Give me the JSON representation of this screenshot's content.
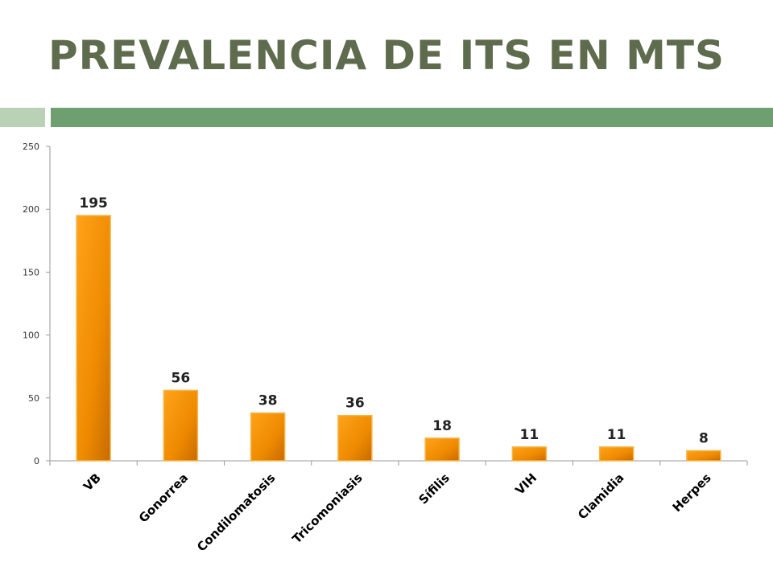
{
  "title": "PREVALENCIA DE ITS EN MTS",
  "colors": {
    "title": "#5e6b4d",
    "accent_light": "#b9d1b4",
    "accent_dark": "#6e9f6e",
    "bar": "#ef8f00"
  },
  "chart_data": {
    "type": "bar",
    "title": "",
    "xlabel": "",
    "ylabel": "",
    "categories": [
      "VB",
      "Gonorrea",
      "Condilomatosis",
      "Tricomoniasis",
      "Sífilis",
      "VIH",
      "Clamidia",
      "Herpes"
    ],
    "values": [
      195,
      56,
      38,
      36,
      18,
      11,
      11,
      8
    ],
    "ylim": [
      0,
      250
    ],
    "yticks": [
      0,
      50,
      100,
      150,
      200,
      250
    ],
    "grid": false,
    "legend": "none",
    "data_labels": true
  }
}
